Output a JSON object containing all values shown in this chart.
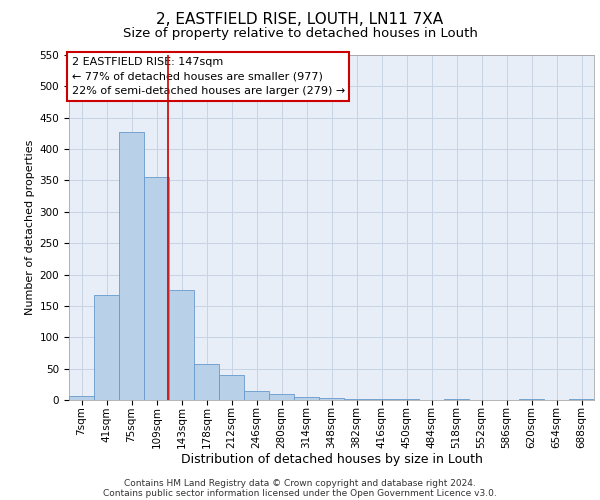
{
  "title": "2, EASTFIELD RISE, LOUTH, LN11 7XA",
  "subtitle": "Size of property relative to detached houses in Louth",
  "xlabel": "Distribution of detached houses by size in Louth",
  "ylabel": "Number of detached properties",
  "categories": [
    "7sqm",
    "41sqm",
    "75sqm",
    "109sqm",
    "143sqm",
    "178sqm",
    "212sqm",
    "246sqm",
    "280sqm",
    "314sqm",
    "348sqm",
    "382sqm",
    "416sqm",
    "450sqm",
    "484sqm",
    "518sqm",
    "552sqm",
    "586sqm",
    "620sqm",
    "654sqm",
    "688sqm"
  ],
  "values": [
    7,
    168,
    428,
    356,
    175,
    57,
    40,
    15,
    10,
    5,
    3,
    1,
    1,
    1,
    0,
    2,
    0,
    0,
    1,
    0,
    2
  ],
  "bar_color": "#b8d0e8",
  "bar_edge_color": "#6699cc",
  "ylim": [
    0,
    550
  ],
  "yticks": [
    0,
    50,
    100,
    150,
    200,
    250,
    300,
    350,
    400,
    450,
    500,
    550
  ],
  "grid_color": "#c8d4e4",
  "background_color": "#e8eef8",
  "annotation_text": "2 EASTFIELD RISE: 147sqm\n← 77% of detached houses are smaller (977)\n22% of semi-detached houses are larger (279) →",
  "annotation_box_color": "#ffffff",
  "annotation_box_edge": "#cc0000",
  "vline_color": "#cc0000",
  "vline_x": 3.47,
  "footer_line1": "Contains HM Land Registry data © Crown copyright and database right 2024.",
  "footer_line2": "Contains public sector information licensed under the Open Government Licence v3.0.",
  "title_fontsize": 11,
  "subtitle_fontsize": 9.5,
  "xlabel_fontsize": 9,
  "ylabel_fontsize": 8,
  "tick_fontsize": 7.5,
  "annotation_fontsize": 8,
  "footer_fontsize": 6.5
}
